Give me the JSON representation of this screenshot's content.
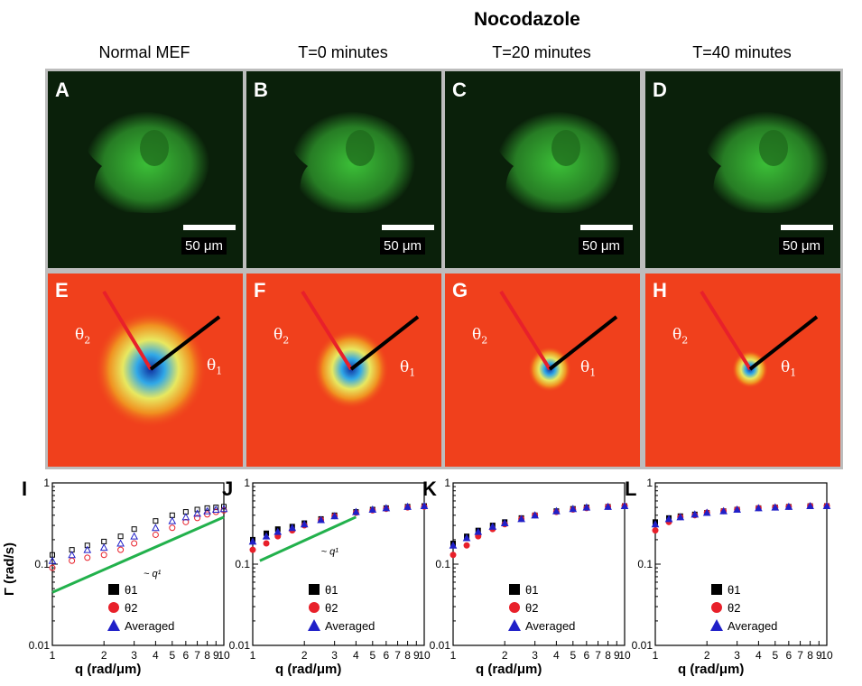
{
  "figure": {
    "group_heading": "Nocodazole",
    "columns": [
      "Normal MEF",
      "T=0 minutes",
      "T=20 minutes",
      "T=40 minutes"
    ],
    "top_panels": [
      {
        "label": "A",
        "scale_text": "50 μm"
      },
      {
        "label": "B",
        "scale_text": "50 μm"
      },
      {
        "label": "C",
        "scale_text": "50 μm"
      },
      {
        "label": "D",
        "scale_text": "50 μm"
      }
    ],
    "mid_panels": [
      {
        "label": "E",
        "theta1": "θ",
        "theta2": "θ",
        "sub1": "1",
        "sub2": "2"
      },
      {
        "label": "F",
        "theta1": "θ",
        "theta2": "θ",
        "sub1": "1",
        "sub2": "2"
      },
      {
        "label": "G",
        "theta1": "θ",
        "theta2": "θ",
        "sub1": "1",
        "sub2": "2"
      },
      {
        "label": "H",
        "theta1": "θ",
        "theta2": "θ",
        "sub1": "1",
        "sub2": "2"
      }
    ],
    "ylabel": "Γ (rad/s)",
    "xlabel": "q (rad/μm)",
    "colors": {
      "cell_green": "#3ec83a",
      "bg_red": "#f0401c",
      "theta1_line": "#000000",
      "theta2_line": "#e8202a",
      "fit_line": "#22b14c",
      "series_black": "#000000",
      "series_red": "#e8202a",
      "series_blue": "#2020c8"
    }
  },
  "chart_data": [
    {
      "label": "I",
      "type": "scatter",
      "xscale": "log",
      "yscale": "log",
      "xlim": [
        1,
        10
      ],
      "ylim": [
        0.01,
        1
      ],
      "xticks": [
        "1",
        "2",
        "3",
        "4",
        "5",
        "6",
        "7",
        "8",
        "9",
        "10"
      ],
      "yticks": [
        "0.01",
        "0.1",
        "1"
      ],
      "legend": [
        "θ1",
        "θ2",
        "Averaged"
      ],
      "legend_placement": "bottom-right",
      "annotation": "~ q¹",
      "fit_line": {
        "x": [
          1,
          10
        ],
        "y": [
          0.045,
          0.38
        ]
      },
      "series": [
        {
          "name": "θ1",
          "x": [
            1.0,
            1.3,
            1.6,
            2.0,
            2.5,
            3.0,
            4.0,
            5.0,
            6.0,
            7.0,
            8.0,
            9.0,
            10.0
          ],
          "y": [
            0.13,
            0.15,
            0.17,
            0.19,
            0.22,
            0.27,
            0.34,
            0.4,
            0.44,
            0.47,
            0.49,
            0.5,
            0.51
          ]
        },
        {
          "name": "θ2",
          "x": [
            1.0,
            1.3,
            1.6,
            2.0,
            2.5,
            3.0,
            4.0,
            5.0,
            6.0,
            7.0,
            8.0,
            9.0,
            10.0
          ],
          "y": [
            0.09,
            0.11,
            0.12,
            0.13,
            0.15,
            0.18,
            0.23,
            0.28,
            0.33,
            0.37,
            0.41,
            0.44,
            0.46
          ]
        },
        {
          "name": "Averaged",
          "x": [
            1.0,
            1.3,
            1.6,
            2.0,
            2.5,
            3.0,
            4.0,
            5.0,
            6.0,
            7.0,
            8.0,
            9.0,
            10.0
          ],
          "y": [
            0.11,
            0.13,
            0.15,
            0.16,
            0.18,
            0.22,
            0.28,
            0.34,
            0.38,
            0.42,
            0.45,
            0.47,
            0.48
          ]
        }
      ]
    },
    {
      "label": "J",
      "type": "scatter",
      "xscale": "log",
      "yscale": "log",
      "xlim": [
        1,
        10
      ],
      "ylim": [
        0.01,
        1
      ],
      "xticks": [
        "1",
        "2",
        "3",
        "4",
        "5",
        "6",
        "7",
        "8",
        "9",
        "10"
      ],
      "yticks": [
        "0.01",
        "0.1",
        "1"
      ],
      "legend": [
        "θ1",
        "θ2",
        "Averaged"
      ],
      "legend_placement": "bottom-right",
      "annotation": "~ q¹",
      "fit_line": {
        "x": [
          1.1,
          4.0
        ],
        "y": [
          0.11,
          0.38
        ]
      },
      "series": [
        {
          "name": "θ1",
          "x": [
            1.0,
            1.2,
            1.4,
            1.7,
            2.0,
            2.5,
            3.0,
            4.0,
            5.0,
            6.0,
            8.0,
            10.0
          ],
          "y": [
            0.2,
            0.24,
            0.27,
            0.29,
            0.32,
            0.36,
            0.4,
            0.44,
            0.47,
            0.49,
            0.51,
            0.52
          ]
        },
        {
          "name": "θ2",
          "x": [
            1.0,
            1.2,
            1.4,
            1.7,
            2.0,
            2.5,
            3.0,
            4.0,
            5.0,
            6.0,
            8.0,
            10.0
          ],
          "y": [
            0.15,
            0.18,
            0.22,
            0.26,
            0.3,
            0.35,
            0.39,
            0.43,
            0.46,
            0.48,
            0.5,
            0.51
          ]
        },
        {
          "name": "Averaged",
          "x": [
            1.0,
            1.2,
            1.4,
            1.7,
            2.0,
            2.5,
            3.0,
            4.0,
            5.0,
            6.0,
            8.0,
            10.0
          ],
          "y": [
            0.19,
            0.22,
            0.25,
            0.28,
            0.31,
            0.35,
            0.39,
            0.44,
            0.47,
            0.49,
            0.51,
            0.52
          ]
        }
      ]
    },
    {
      "label": "K",
      "type": "scatter",
      "xscale": "log",
      "yscale": "log",
      "xlim": [
        1,
        10
      ],
      "ylim": [
        0.01,
        1
      ],
      "xticks": [
        "1",
        "2",
        "3",
        "4",
        "5",
        "6",
        "7",
        "8",
        "9",
        "10"
      ],
      "yticks": [
        "0.01",
        "0.1",
        "1"
      ],
      "legend": [
        "θ1",
        "θ2",
        "Averaged"
      ],
      "legend_placement": "bottom-right",
      "series": [
        {
          "name": "θ1",
          "x": [
            1.0,
            1.2,
            1.4,
            1.7,
            2.0,
            2.5,
            3.0,
            4.0,
            5.0,
            6.0,
            8.0,
            10.0
          ],
          "y": [
            0.18,
            0.22,
            0.26,
            0.3,
            0.33,
            0.37,
            0.4,
            0.45,
            0.48,
            0.5,
            0.51,
            0.52
          ]
        },
        {
          "name": "θ2",
          "x": [
            1.0,
            1.2,
            1.4,
            1.7,
            2.0,
            2.5,
            3.0,
            4.0,
            5.0,
            6.0,
            8.0,
            10.0
          ],
          "y": [
            0.13,
            0.17,
            0.22,
            0.27,
            0.31,
            0.36,
            0.4,
            0.44,
            0.47,
            0.49,
            0.51,
            0.52
          ]
        },
        {
          "name": "Averaged",
          "x": [
            1.0,
            1.2,
            1.4,
            1.7,
            2.0,
            2.5,
            3.0,
            4.0,
            5.0,
            6.0,
            8.0,
            10.0
          ],
          "y": [
            0.17,
            0.21,
            0.25,
            0.29,
            0.32,
            0.36,
            0.4,
            0.45,
            0.48,
            0.5,
            0.51,
            0.52
          ]
        }
      ]
    },
    {
      "label": "L",
      "type": "scatter",
      "xscale": "log",
      "yscale": "log",
      "xlim": [
        1,
        10
      ],
      "ylim": [
        0.01,
        1
      ],
      "xticks": [
        "1",
        "2",
        "3",
        "4",
        "5",
        "6",
        "7",
        "8",
        "9",
        "10"
      ],
      "yticks": [
        "0.01",
        "0.1",
        "1"
      ],
      "legend": [
        "θ1",
        "θ2",
        "Averaged"
      ],
      "legend_placement": "bottom-right",
      "series": [
        {
          "name": "θ1",
          "x": [
            1.0,
            1.2,
            1.4,
            1.7,
            2.0,
            2.5,
            3.0,
            4.0,
            5.0,
            6.0,
            8.0,
            10.0
          ],
          "y": [
            0.33,
            0.37,
            0.39,
            0.41,
            0.43,
            0.45,
            0.47,
            0.49,
            0.5,
            0.51,
            0.52,
            0.52
          ]
        },
        {
          "name": "θ2",
          "x": [
            1.0,
            1.2,
            1.4,
            1.7,
            2.0,
            2.5,
            3.0,
            4.0,
            5.0,
            6.0,
            8.0,
            10.0
          ],
          "y": [
            0.26,
            0.33,
            0.38,
            0.4,
            0.43,
            0.45,
            0.47,
            0.49,
            0.5,
            0.51,
            0.52,
            0.52
          ]
        },
        {
          "name": "Averaged",
          "x": [
            1.0,
            1.2,
            1.4,
            1.7,
            2.0,
            2.5,
            3.0,
            4.0,
            5.0,
            6.0,
            8.0,
            10.0
          ],
          "y": [
            0.31,
            0.36,
            0.38,
            0.41,
            0.43,
            0.45,
            0.47,
            0.49,
            0.5,
            0.51,
            0.52,
            0.52
          ]
        }
      ]
    }
  ]
}
